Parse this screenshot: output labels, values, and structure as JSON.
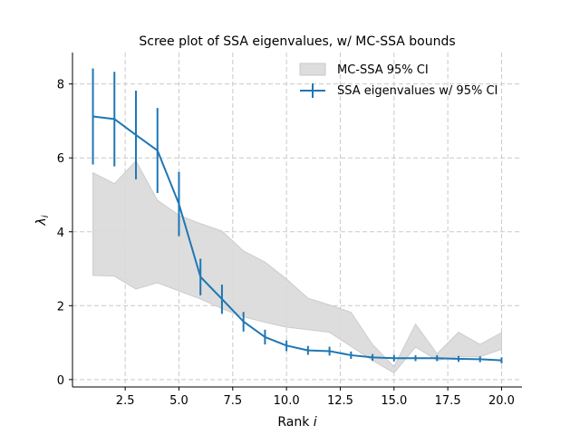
{
  "chart_data": {
    "type": "line",
    "title": "Scree plot of SSA eigenvalues, w/ MC-SSA bounds",
    "xlabel_text": "Rank ",
    "xlabel_var": "i",
    "ylabel_var": "λ",
    "ylabel_sub": "i",
    "xlim": [
      0.05,
      20.95
    ],
    "ylim": [
      -0.2,
      8.85
    ],
    "x_ticks": [
      2.5,
      5.0,
      7.5,
      10.0,
      12.5,
      15.0,
      17.5,
      20.0
    ],
    "x_tick_labels": [
      "2.5",
      "5.0",
      "7.5",
      "10.0",
      "12.5",
      "15.0",
      "17.5",
      "20.0"
    ],
    "y_ticks": [
      0,
      2,
      4,
      6,
      8
    ],
    "y_tick_labels": [
      "0",
      "2",
      "4",
      "6",
      "8"
    ],
    "grid": true,
    "legend_position": "top-right",
    "x": [
      1,
      2,
      3,
      4,
      5,
      6,
      7,
      8,
      9,
      10,
      11,
      12,
      13,
      14,
      15,
      16,
      17,
      18,
      19,
      20
    ],
    "series": [
      {
        "name": "SSA eigenvalues w/ 95% CI",
        "kind": "line-errorbar",
        "color": "#1f77b4",
        "values": [
          7.12,
          7.05,
          6.62,
          6.2,
          4.75,
          2.78,
          2.18,
          1.57,
          1.15,
          0.92,
          0.79,
          0.77,
          0.66,
          0.6,
          0.58,
          0.58,
          0.58,
          0.56,
          0.55,
          0.52
        ],
        "lower": [
          5.82,
          5.77,
          5.42,
          5.05,
          3.88,
          2.28,
          1.78,
          1.3,
          0.95,
          0.77,
          0.67,
          0.65,
          0.56,
          0.51,
          0.49,
          0.5,
          0.5,
          0.48,
          0.47,
          0.44
        ],
        "upper": [
          8.42,
          8.33,
          7.82,
          7.35,
          5.62,
          3.27,
          2.57,
          1.83,
          1.35,
          1.06,
          0.91,
          0.89,
          0.76,
          0.69,
          0.67,
          0.66,
          0.66,
          0.64,
          0.63,
          0.6
        ]
      },
      {
        "name": "MC-SSA 95% CI",
        "kind": "band",
        "color": "#d9d9d9",
        "lower": [
          2.82,
          2.8,
          2.45,
          2.62,
          2.4,
          2.18,
          1.92,
          1.7,
          1.55,
          1.42,
          1.35,
          1.28,
          0.9,
          0.52,
          0.18,
          0.88,
          0.52,
          0.62,
          0.62,
          0.82
        ],
        "upper": [
          5.6,
          5.3,
          5.92,
          4.85,
          4.45,
          4.22,
          4.02,
          3.48,
          3.18,
          2.72,
          2.2,
          2.02,
          1.82,
          0.95,
          0.35,
          1.5,
          0.7,
          1.28,
          0.95,
          1.27
        ]
      }
    ]
  }
}
